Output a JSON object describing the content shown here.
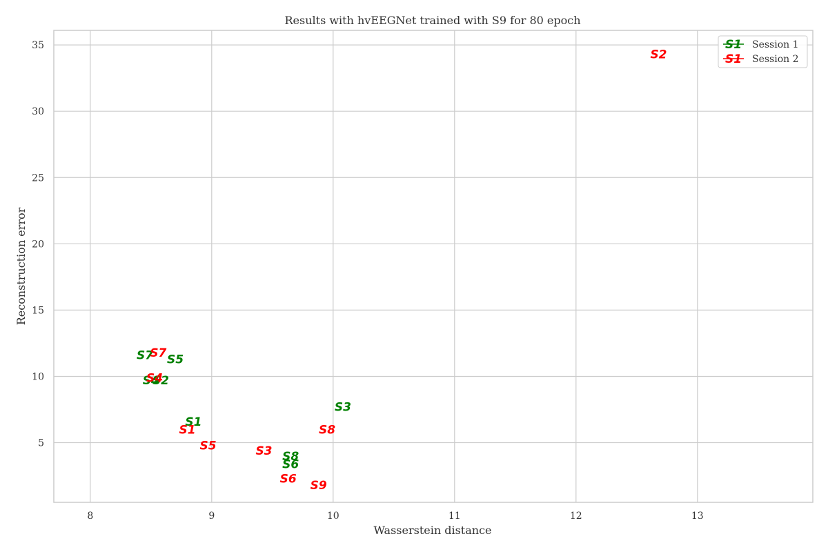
{
  "chart_data": {
    "type": "scatter",
    "title": "Results with hvEEGNet trained with S9 for 80 epoch",
    "xlabel": "Wasserstein distance",
    "ylabel": "Reconstruction error",
    "xlim": [
      7.7,
      13.95
    ],
    "ylim": [
      0.5,
      36.1
    ],
    "x_ticks": [
      8,
      9,
      10,
      11,
      12,
      13
    ],
    "y_ticks": [
      5,
      10,
      15,
      20,
      25,
      30,
      35
    ],
    "grid": true,
    "legend": {
      "placement": "top-right",
      "marker_text": "S1",
      "entries": [
        {
          "label": "Session 1",
          "color": "#008000"
        },
        {
          "label": "Session 2",
          "color": "#ff0000"
        }
      ]
    },
    "series": [
      {
        "name": "Session 1",
        "color": "#008000",
        "points": [
          {
            "label": "S1",
            "x": 8.85,
            "y": 6.6
          },
          {
            "label": "S2",
            "x": 8.58,
            "y": 9.7
          },
          {
            "label": "S3",
            "x": 10.08,
            "y": 7.7
          },
          {
            "label": "S4",
            "x": 8.5,
            "y": 9.7
          },
          {
            "label": "S5",
            "x": 8.7,
            "y": 11.3
          },
          {
            "label": "S6",
            "x": 9.65,
            "y": 3.4
          },
          {
            "label": "S7",
            "x": 8.45,
            "y": 11.6
          },
          {
            "label": "S8",
            "x": 9.65,
            "y": 4.0
          }
        ]
      },
      {
        "name": "Session 2",
        "color": "#ff0000",
        "points": [
          {
            "label": "S1",
            "x": 8.8,
            "y": 6.0
          },
          {
            "label": "S2",
            "x": 12.68,
            "y": 34.3
          },
          {
            "label": "S3",
            "x": 9.43,
            "y": 4.4
          },
          {
            "label": "S4",
            "x": 8.53,
            "y": 9.9
          },
          {
            "label": "S5",
            "x": 8.97,
            "y": 4.8
          },
          {
            "label": "S6",
            "x": 9.63,
            "y": 2.3
          },
          {
            "label": "S7",
            "x": 8.56,
            "y": 11.8
          },
          {
            "label": "S8",
            "x": 9.95,
            "y": 6.0
          },
          {
            "label": "S9",
            "x": 9.88,
            "y": 1.8
          }
        ]
      }
    ]
  }
}
